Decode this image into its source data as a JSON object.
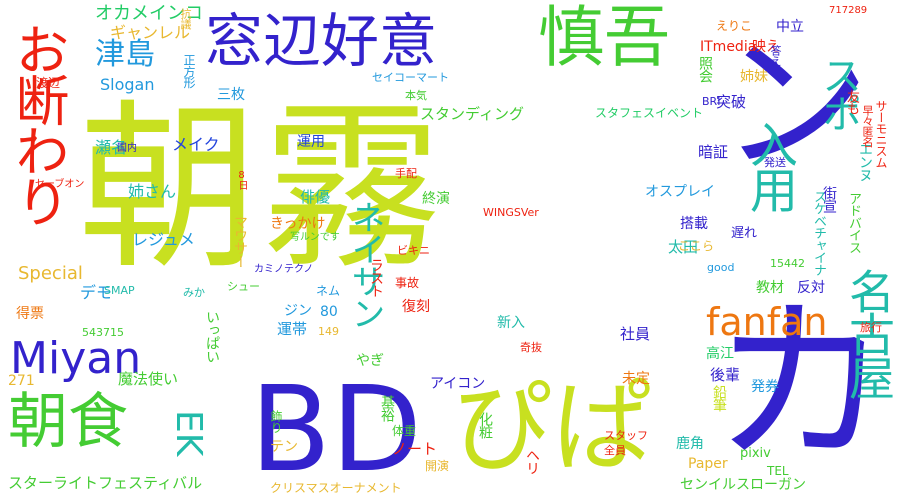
{
  "colors": {
    "background": "#ffffff",
    "red": "#ee2211",
    "orange": "#ee7711",
    "yellow_orange": "#e8b830",
    "yellow": "#c8e020",
    "lime": "#9ee020",
    "green": "#44cc33",
    "green2": "#22cc66",
    "teal": "#22bbaa",
    "cyan": "#2299dd",
    "blue": "#2244dd",
    "indigo": "#3322cc"
  },
  "words": {
    "asagiri_1": "朝",
    "asagiri_2": "霧",
    "kanji_ka": "カ",
    "kanji_n": "ン",
    "bd": "BD",
    "pipa": "ぴぱ",
    "madobeko": "窓辺好意",
    "shingo": "慎吾",
    "chouku": "朝食",
    "odan": "お断わり",
    "miyan": "Miyan",
    "fanfan": "fanfan",
    "nagoya": "名古屋",
    "nyuyou": "入用",
    "sapo": "スポ",
    "neisa": "ネイサン",
    "ek": "EK",
    "tsushima": "津島",
    "okameinko": "オカメインコ",
    "genre": "ギャンレル",
    "slogan": "Slogan",
    "sanmai": "三枚",
    "make": "メイク",
    "unyou": "運用",
    "seibun": "瀬名",
    "onesan": "姉さん",
    "resume": "レジュメ",
    "haiyuu": "俳優",
    "special": "Special",
    "demo": "デモ",
    "smap": "SMAP",
    "mika": "みか",
    "tokuhyo": "得票",
    "n271": "271",
    "mahoutsukai": "魔法使い",
    "ippai": "いっぱい",
    "rentai": "運帯",
    "n80": "80",
    "gin": "ジン",
    "nemu": "ネム",
    "mauser": "マウサー",
    "n543715": "543715",
    "n149": "149",
    "yagi": "やぎ",
    "kazari": "飾り",
    "ten": "テン",
    "kiso": "基裕",
    "note": "ノート",
    "taiju": "体重",
    "starlight": "スターライトフェスティバル",
    "christmas": "クリスマスオーナメント",
    "kaien": "開演",
    "hericopter": "ヘリ",
    "kesho": "化粧",
    "icon": "アイコン",
    "kouhai": "後輩",
    "enpitsu": "鉛筆",
    "kakaku": "鹿角",
    "paper": "Paper",
    "pixiv": "pixiv",
    "tel": "TEL",
    "sentence": "センイルスローガン",
    "hakken": "発券",
    "takae": "高江",
    "shain": "社員",
    "mitei": "未定",
    "shinnyu": "新入",
    "kyoubatsu": "奇抜",
    "staff": "スタッフ",
    "zenin": "全員",
    "ryokou": "旅行",
    "n15442": "15442",
    "good": "good",
    "kyou": "教材",
    "hanten": "反対",
    "okure": "遅れ",
    "kaidou": "街宣",
    "advice": "アドバイス",
    "skechi": "スケベチャイナ",
    "enza": "エンヌ",
    "ospray": "オスプレイ",
    "tosai": "搭載",
    "ota": "太田",
    "kokora": "ここら",
    "bikini": "ビキニ",
    "shuu": "シュー",
    "kamino": "カミノテクノ",
    "kikkake": "きっかけ",
    "sharun": "写ルンです",
    "wings": "WINGSVer",
    "jigoku": "事故",
    "rasuto": "ラスト",
    "fukkoku": "復刻",
    "shuuen": "終演",
    "tehai": "手配",
    "ankyou": "暗証",
    "toppa": "突破",
    "honki": "本気",
    "standing": "スタンディング",
    "staffes": "スタフェスイベント",
    "seikomart": "セイコーマート",
    "itmedia": "ITmedia",
    "shoukai": "照会",
    "bri": "BRI",
    "shimai": "姉妹",
    "eriko": "えりこ",
    "bae": "映え",
    "chuuritsu": "中立",
    "kotae": "答え",
    "n717289": "717289",
    "tomo": "友も",
    "sosoku": "早々",
    "sarmos": "サーモニスム",
    "kakumu": "匿名",
    "hassou": "発送",
    "kokunai": "国内",
    "watanabe": "渡辺",
    "sevenon": "セーブオン",
    "seihou": "正方形",
    "kougi": "抗議",
    "hachi": "8日"
  }
}
